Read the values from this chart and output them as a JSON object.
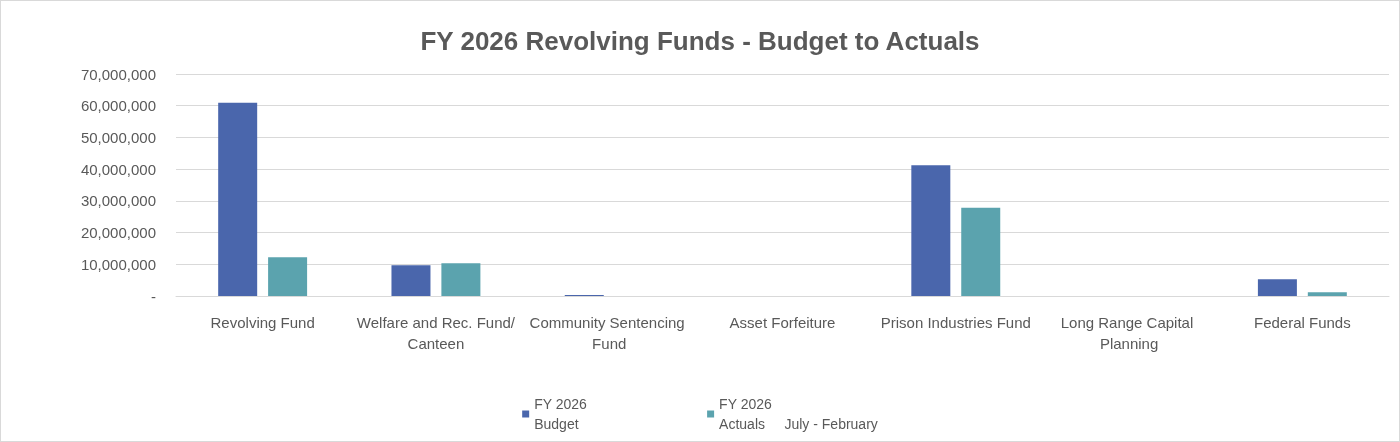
{
  "chart_data": {
    "type": "bar",
    "title": "FY 2026 Revolving Funds - Budget to Actuals",
    "categories": [
      "Revolving Fund",
      "Welfare and Rec. Fund/Canteen",
      "Community Sentencing Fund",
      "Asset Forfeiture",
      "Prison Industries Fund",
      "Long Range Capital Planning",
      "Federal Funds"
    ],
    "series": [
      {
        "name": "FY 2026 Budget",
        "color": "#4a66ac",
        "values": [
          60900000,
          9700000,
          300000,
          0,
          41200000,
          0,
          5300000
        ]
      },
      {
        "name": "FY 2026 Actuals     July - February",
        "color": "#5ba3ae",
        "values": [
          12200000,
          10300000,
          0,
          0,
          27800000,
          0,
          1200000
        ]
      }
    ],
    "ylim": [
      0,
      70000000
    ],
    "yticks": [
      {
        "value": 0,
        "label": "-"
      },
      {
        "value": 10000000,
        "label": "10,000,000"
      },
      {
        "value": 20000000,
        "label": "20,000,000"
      },
      {
        "value": 30000000,
        "label": "30,000,000"
      },
      {
        "value": 40000000,
        "label": "40,000,000"
      },
      {
        "value": 50000000,
        "label": "50,000,000"
      },
      {
        "value": 60000000,
        "label": "60,000,000"
      },
      {
        "value": 70000000,
        "label": "70,000,000"
      }
    ],
    "grid": "y",
    "legend": "bottom"
  }
}
